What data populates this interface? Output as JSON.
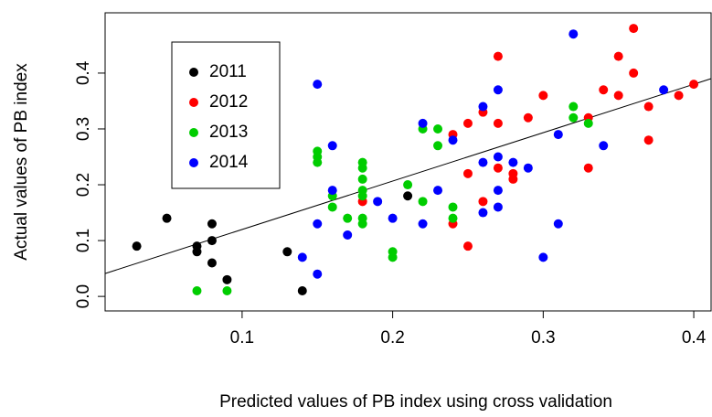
{
  "chart_data": {
    "type": "scatter",
    "x_label": "Predicted values of PB index using cross validation",
    "y_label": "Actual values of PB index",
    "xlim": [
      0.009,
      0.4115
    ],
    "ylim": [
      -0.026,
      0.508
    ],
    "xticks": [
      0.1,
      0.2,
      0.3,
      0.4
    ],
    "yticks": [
      {
        "value": 0,
        "label": "0.0"
      },
      0.1,
      0.2,
      0.3,
      0.4
    ],
    "legend": "top-left",
    "trend_line": {
      "color": "#000000",
      "x": [
        0.009,
        0.4115
      ],
      "y": [
        0.041,
        0.39
      ]
    },
    "series": [
      {
        "name": "2011",
        "color": "#000000",
        "x": [
          0.03,
          0.05,
          0.07,
          0.07,
          0.08,
          0.08,
          0.08,
          0.09,
          0.13,
          0.14,
          0.21
        ],
        "values": [
          0.09,
          0.14,
          0.08,
          0.09,
          0.13,
          0.1,
          0.06,
          0.03,
          0.08,
          0.01,
          0.18
        ]
      },
      {
        "name": "2012",
        "color": "#ff0000",
        "x": [
          0.24,
          0.24,
          0.25,
          0.25,
          0.25,
          0.26,
          0.26,
          0.27,
          0.27,
          0.27,
          0.28,
          0.28,
          0.29,
          0.3,
          0.33,
          0.33,
          0.34,
          0.35,
          0.35,
          0.36,
          0.36,
          0.37,
          0.37,
          0.39,
          0.4,
          0.18
        ],
        "values": [
          0.29,
          0.13,
          0.31,
          0.22,
          0.09,
          0.33,
          0.17,
          0.43,
          0.31,
          0.23,
          0.22,
          0.21,
          0.32,
          0.36,
          0.32,
          0.23,
          0.37,
          0.43,
          0.36,
          0.48,
          0.4,
          0.34,
          0.28,
          0.36,
          0.38,
          0.17
        ]
      },
      {
        "name": "2013",
        "color": "#00cd00",
        "x": [
          0.07,
          0.09,
          0.15,
          0.15,
          0.15,
          0.16,
          0.16,
          0.17,
          0.18,
          0.18,
          0.18,
          0.18,
          0.18,
          0.18,
          0.18,
          0.2,
          0.2,
          0.21,
          0.22,
          0.22,
          0.23,
          0.23,
          0.24,
          0.24,
          0.32,
          0.32,
          0.33
        ],
        "values": [
          0.01,
          0.01,
          0.26,
          0.25,
          0.24,
          0.18,
          0.16,
          0.14,
          0.24,
          0.23,
          0.21,
          0.19,
          0.18,
          0.14,
          0.13,
          0.08,
          0.07,
          0.2,
          0.3,
          0.17,
          0.3,
          0.27,
          0.16,
          0.14,
          0.34,
          0.32,
          0.31
        ]
      },
      {
        "name": "2014",
        "color": "#0000ff",
        "x": [
          0.14,
          0.15,
          0.15,
          0.15,
          0.16,
          0.16,
          0.17,
          0.19,
          0.2,
          0.22,
          0.22,
          0.23,
          0.24,
          0.26,
          0.26,
          0.26,
          0.27,
          0.27,
          0.27,
          0.27,
          0.28,
          0.29,
          0.3,
          0.31,
          0.31,
          0.32,
          0.34,
          0.38
        ],
        "values": [
          0.07,
          0.38,
          0.13,
          0.04,
          0.27,
          0.19,
          0.11,
          0.17,
          0.14,
          0.31,
          0.13,
          0.19,
          0.28,
          0.34,
          0.24,
          0.15,
          0.37,
          0.25,
          0.19,
          0.16,
          0.24,
          0.23,
          0.07,
          0.29,
          0.13,
          0.47,
          0.27,
          0.37
        ]
      }
    ]
  }
}
